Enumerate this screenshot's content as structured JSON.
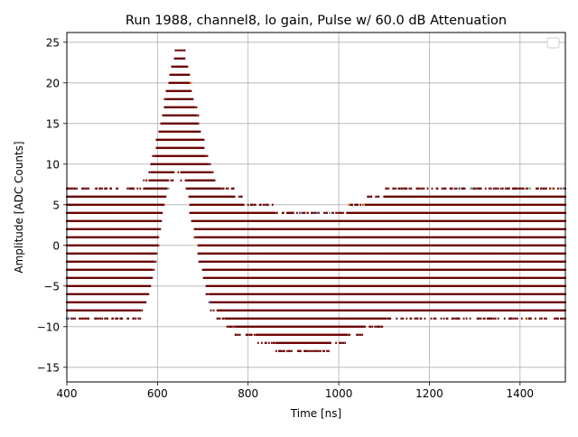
{
  "chart_data": {
    "type": "scatter",
    "title": "Run 1988, channel8, lo gain, Pulse w/ 60.0 dB Attenuation",
    "xlabel": "Time [ns]",
    "ylabel": "Amplitude [ADC Counts]",
    "xlim": [
      400,
      1500
    ],
    "ylim": [
      -16.8,
      26.2
    ],
    "xticks": [
      400,
      600,
      800,
      1000,
      1200,
      1400
    ],
    "yticks": [
      -15,
      -10,
      -5,
      0,
      5,
      10,
      15,
      20,
      25
    ],
    "xtick_labels": [
      "400",
      "600",
      "800",
      "1000",
      "1200",
      "1400"
    ],
    "ytick_labels": [
      "−15",
      "−10",
      "−5",
      "0",
      "5",
      "10",
      "15",
      "20",
      "25"
    ],
    "grid": true,
    "legend": {
      "placement": "upper right",
      "entries": []
    },
    "point_color": "#6b0000",
    "outlier_colors": [
      "#f5a623",
      "#3a7fd5",
      "#4dd0b0",
      "#e8b0c8"
    ],
    "sample_step_ns": 2,
    "sampled_from_image": true,
    "baseline_levels_adc": [
      -9,
      -8,
      -7,
      -6,
      -5,
      -4,
      -3,
      -2,
      -1,
      0,
      1,
      2,
      3,
      4,
      5,
      6,
      7
    ],
    "occupancy_envelope": {
      "description": "approximate min/max ADC level occupied by the dense band at a given time (ns)",
      "time_ns": [
        400,
        560,
        580,
        600,
        620,
        640,
        660,
        680,
        700,
        720,
        740,
        760,
        780,
        800,
        840,
        880,
        920,
        960,
        1000,
        1040,
        1080,
        1120,
        1200,
        1300,
        1400,
        1500
      ],
      "upper": [
        7,
        7,
        8,
        13,
        19,
        24,
        24,
        18,
        13,
        9,
        7,
        7,
        6,
        5,
        5,
        4,
        4,
        4,
        4,
        5,
        6,
        7,
        7,
        7,
        7,
        7
      ],
      "lower": [
        -9,
        -9,
        -6,
        -1,
        7,
        9,
        8,
        2,
        -4,
        -8,
        -9,
        -10,
        -11,
        -11,
        -12,
        -13,
        -13,
        -13,
        -12,
        -11,
        -10,
        -9,
        -9,
        -9,
        -9,
        -9
      ]
    }
  }
}
